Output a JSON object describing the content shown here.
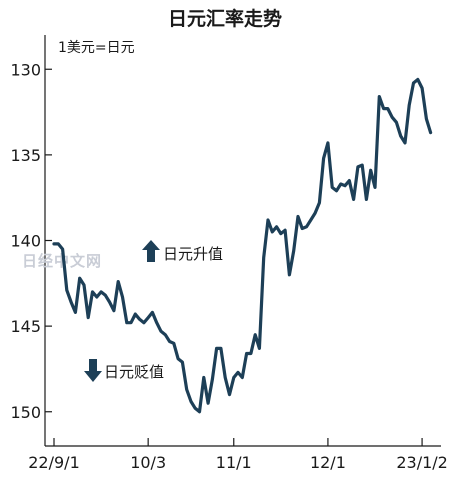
{
  "chart_data": {
    "type": "line",
    "title": "日元汇率走势",
    "unit_label": "1美元=日元",
    "watermark": "日经中文网",
    "y_inverted": true,
    "ylim": [
      128,
      152
    ],
    "y_ticks": [
      130,
      135,
      140,
      145,
      150
    ],
    "x_ticks": [
      {
        "label": "22/9/1",
        "pos": 0
      },
      {
        "label": "10/3",
        "pos": 22
      },
      {
        "label": "11/1",
        "pos": 42
      },
      {
        "label": "12/1",
        "pos": 64
      },
      {
        "label": "23/1/2",
        "pos": 86
      }
    ],
    "annotations": [
      {
        "text": "日元升值",
        "direction": "up"
      },
      {
        "text": "日元贬值",
        "direction": "down"
      }
    ],
    "line_color": "#1d3f57",
    "series": [
      {
        "values": [
          140.2,
          140.2,
          140.5,
          142.9,
          143.6,
          144.2,
          142.2,
          142.6,
          144.5,
          143.0,
          143.3,
          143.0,
          143.2,
          143.6,
          144.1,
          142.4,
          143.3,
          144.8,
          144.8,
          144.3,
          144.6,
          144.8,
          144.5,
          144.2,
          144.8,
          145.3,
          145.5,
          145.9,
          146.0,
          146.9,
          147.1,
          148.7,
          149.4,
          149.8,
          150.0,
          148.0,
          149.5,
          148.1,
          146.3,
          146.3,
          148.0,
          149.0,
          148.0,
          147.7,
          148.0,
          146.6,
          146.6,
          145.5,
          146.3,
          141.0,
          138.8,
          139.5,
          139.2,
          139.6,
          139.4,
          142.0,
          140.6,
          138.6,
          139.3,
          139.2,
          138.8,
          138.4,
          137.8,
          135.2,
          134.3,
          136.9,
          137.1,
          136.7,
          136.8,
          136.5,
          137.6,
          135.7,
          135.6,
          137.6,
          135.9,
          136.9,
          131.6,
          132.3,
          132.3,
          132.8,
          133.1,
          133.9,
          134.3,
          132.1,
          130.8,
          130.6,
          131.1,
          132.9,
          133.7
        ]
      }
    ]
  }
}
